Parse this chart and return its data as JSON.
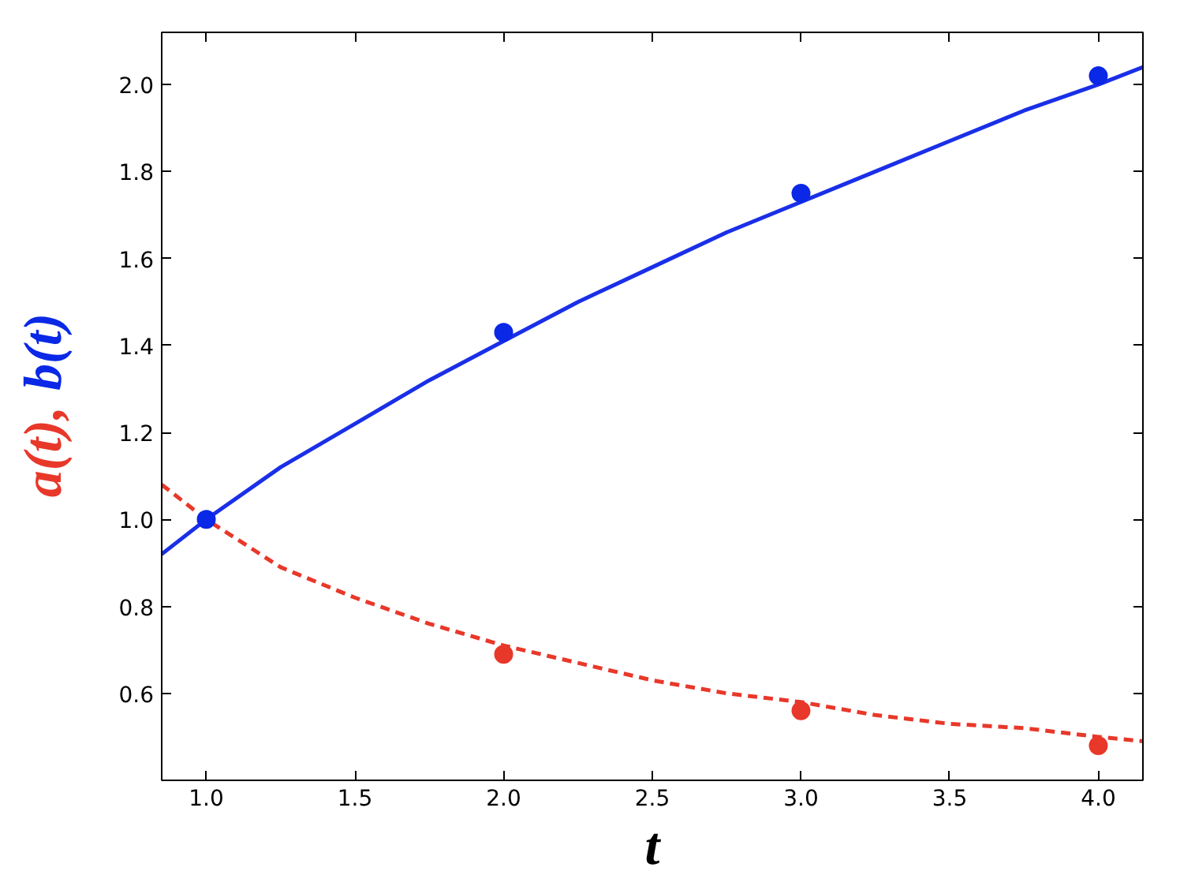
{
  "chart_data": {
    "type": "scatter",
    "xlabel": "t",
    "ylabel": "a(t), b(t)",
    "marker": "circle",
    "grid": false,
    "xlim": [
      0.85,
      4.15
    ],
    "ylim": [
      0.4,
      2.12
    ],
    "xticks": [
      {
        "value": 1.0,
        "label": "1.0"
      },
      {
        "value": 1.5,
        "label": "1.5"
      },
      {
        "value": 2.0,
        "label": "2.0"
      },
      {
        "value": 2.5,
        "label": "2.5"
      },
      {
        "value": 3.0,
        "label": "3.0"
      },
      {
        "value": 3.5,
        "label": "3.5"
      },
      {
        "value": 4.0,
        "label": "4.0"
      }
    ],
    "yticks": [
      {
        "value": 0.6,
        "label": "0.6"
      },
      {
        "value": 0.8,
        "label": "0.8"
      },
      {
        "value": 1.0,
        "label": "1.0"
      },
      {
        "value": 1.2,
        "label": "1.2"
      },
      {
        "value": 1.4,
        "label": "1.4"
      },
      {
        "value": 1.6,
        "label": "1.6"
      },
      {
        "value": 1.8,
        "label": "1.8"
      },
      {
        "value": 2.0,
        "label": "2.0"
      }
    ],
    "series": [
      {
        "type": "line",
        "marker": "none",
        "color": "#e8382a",
        "line_style": "dashed",
        "x": [
          0.85,
          1.0,
          1.25,
          1.5,
          1.75,
          2.0,
          2.25,
          2.5,
          2.75,
          3.0,
          3.25,
          3.5,
          3.75,
          4.0,
          4.15
        ],
        "values": [
          1.08,
          1.0,
          0.89,
          0.82,
          0.76,
          0.71,
          0.67,
          0.63,
          0.6,
          0.58,
          0.55,
          0.53,
          0.52,
          0.5,
          0.49
        ]
      },
      {
        "type": "line",
        "marker": "none",
        "color": "#1a2fe8",
        "line_style": "solid",
        "x": [
          0.85,
          1.0,
          1.25,
          1.5,
          1.75,
          2.0,
          2.25,
          2.5,
          2.75,
          3.0,
          3.25,
          3.5,
          3.75,
          4.0,
          4.15
        ],
        "values": [
          0.92,
          1.0,
          1.12,
          1.22,
          1.32,
          1.41,
          1.5,
          1.58,
          1.66,
          1.73,
          1.8,
          1.87,
          1.94,
          2.0,
          2.04
        ]
      },
      {
        "type": "scatter",
        "color": "#e8382a",
        "x": [
          2,
          3,
          4
        ],
        "values": [
          0.69,
          0.56,
          0.48
        ]
      },
      {
        "type": "scatter",
        "color": "#0a28e6",
        "x": [
          1,
          2,
          3,
          4
        ],
        "values": [
          1.0,
          1.43,
          1.75,
          2.02
        ]
      }
    ]
  }
}
